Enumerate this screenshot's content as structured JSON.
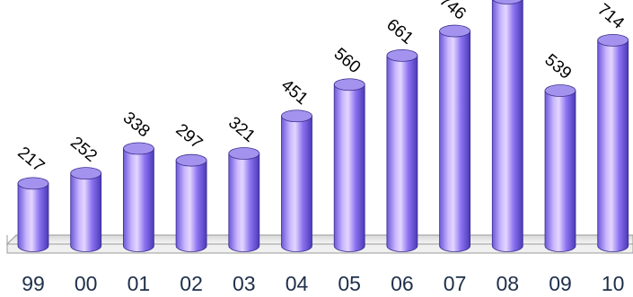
{
  "chart_data": {
    "type": "bar",
    "style": "3d-cylinder",
    "categories": [
      "99",
      "00",
      "01",
      "02",
      "03",
      "04",
      "05",
      "06",
      "07",
      "08",
      "09",
      "10"
    ],
    "values": [
      217,
      252,
      338,
      297,
      321,
      451,
      560,
      661,
      746,
      860,
      539,
      714
    ],
    "visible_labels": [
      "217",
      "252",
      "338",
      "297",
      "321",
      "451",
      "560",
      "661",
      "746",
      "",
      "539",
      "714"
    ],
    "ylim": [
      0,
      860
    ],
    "grid": false,
    "legend": "none",
    "colors": {
      "bar_light": "#dcc8ff",
      "bar_mid": "#8c72f0",
      "bar_dark": "#4a3ab8",
      "bar_top": "#a493ee",
      "floor": "#f0f0f0",
      "floor_edge": "#9a9a9a",
      "tick_text": "#1f2f4a"
    }
  }
}
